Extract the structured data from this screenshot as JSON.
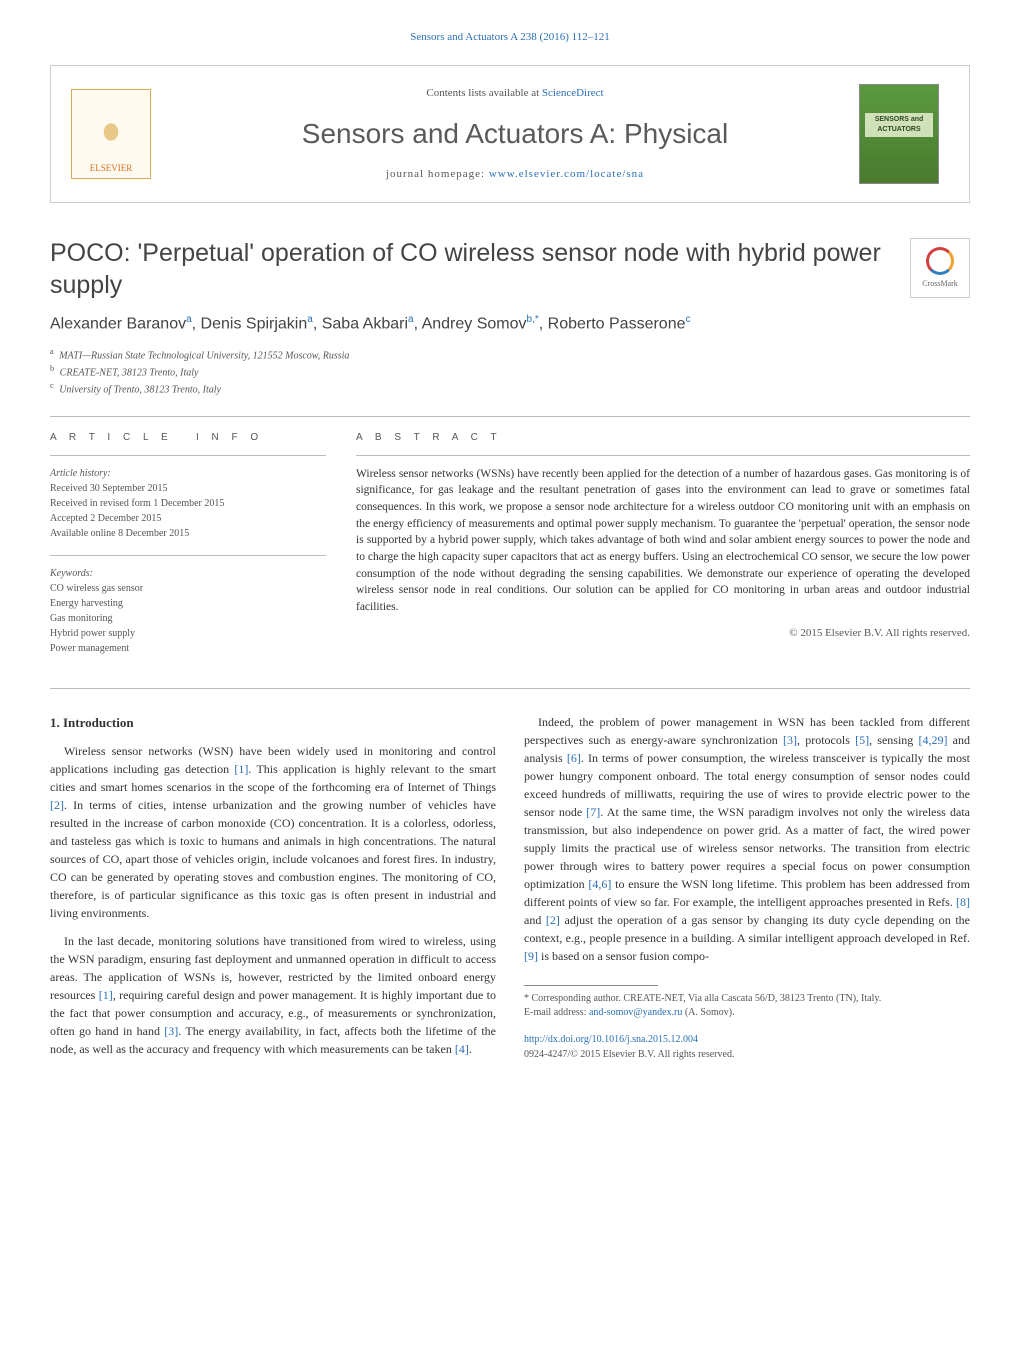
{
  "header_link": "Sensors and Actuators A 238 (2016) 112–121",
  "masthead": {
    "contents_prefix": "Contents lists available at ",
    "contents_link": "ScienceDirect",
    "journal_name": "Sensors and Actuators A: Physical",
    "homepage_prefix": "journal homepage: ",
    "homepage_link": "www.elsevier.com/locate/sna",
    "publisher": "ELSEVIER"
  },
  "crossmark_label": "CrossMark",
  "title": "POCO: 'Perpetual' operation of CO wireless sensor node with hybrid power supply",
  "authors_html": "Alexander Baranov<sup>a</sup>, Denis Spirjakin<sup>a</sup>, Saba Akbari<sup>a</sup>, Andrey Somov<sup>b,*</sup>, Roberto Passerone<sup>c</sup>",
  "affiliations": [
    {
      "sup": "a",
      "text": "MATI—Russian State Technological University, 121552 Moscow, Russia"
    },
    {
      "sup": "b",
      "text": "CREATE-NET, 38123 Trento, Italy"
    },
    {
      "sup": "c",
      "text": "University of Trento, 38123 Trento, Italy"
    }
  ],
  "article_info_heading": "a r t i c l e   i n f o",
  "abstract_heading": "a b s t r a c t",
  "history": {
    "label": "Article history:",
    "received": "Received 30 September 2015",
    "revised": "Received in revised form 1 December 2015",
    "accepted": "Accepted 2 December 2015",
    "online": "Available online 8 December 2015"
  },
  "keywords": {
    "label": "Keywords:",
    "items": [
      "CO wireless gas sensor",
      "Energy harvesting",
      "Gas monitoring",
      "Hybrid power supply",
      "Power management"
    ]
  },
  "abstract": "Wireless sensor networks (WSNs) have recently been applied for the detection of a number of hazardous gases. Gas monitoring is of significance, for gas leakage and the resultant penetration of gases into the environment can lead to grave or sometimes fatal consequences. In this work, we propose a sensor node architecture for a wireless outdoor CO monitoring unit with an emphasis on the energy efficiency of measurements and optimal power supply mechanism. To guarantee the 'perpetual' operation, the sensor node is supported by a hybrid power supply, which takes advantage of both wind and solar ambient energy sources to power the node and to charge the high capacity super capacitors that act as energy buffers. Using an electrochemical CO sensor, we secure the low power consumption of the node without degrading the sensing capabilities. We demonstrate our experience of operating the developed wireless sensor node in real conditions. Our solution can be applied for CO monitoring in urban areas and outdoor industrial facilities.",
  "copyright": "© 2015 Elsevier B.V. All rights reserved.",
  "body": {
    "section_number": "1.",
    "section_title": "Introduction",
    "paragraphs": [
      "Wireless sensor networks (WSN) have been widely used in monitoring and control applications including gas detection [1]. This application is highly relevant to the smart cities and smart homes scenarios in the scope of the forthcoming era of Internet of Things [2]. In terms of cities, intense urbanization and the growing number of vehicles have resulted in the increase of carbon monoxide (CO) concentration. It is a colorless, odorless, and tasteless gas which is toxic to humans and animals in high concentrations. The natural sources of CO, apart those of vehicles origin, include volcanoes and forest fires. In industry, CO can be generated by operating stoves and combustion engines. The monitoring of CO, therefore, is of particular significance as this toxic gas is often present in industrial and living environments.",
      "In the last decade, monitoring solutions have transitioned from wired to wireless, using the WSN paradigm, ensuring fast deployment and unmanned operation in difficult to access areas. The application of WSNs is, however, restricted by the limited onboard energy resources [1], requiring careful design and power management. It is highly important due to the fact that power consumption and accuracy, e.g., of measurements or synchronization, often go hand in hand [3]. The energy availability, in fact, affects both the lifetime of the node, as well as the accuracy and frequency with which measurements can be taken [4].",
      "Indeed, the problem of power management in WSN has been tackled from different perspectives such as energy-aware synchronization [3], protocols [5], sensing [4,29] and analysis [6]. In terms of power consumption, the wireless transceiver is typically the most power hungry component onboard. The total energy consumption of sensor nodes could exceed hundreds of milliwatts, requiring the use of wires to provide electric power to the sensor node [7]. At the same time, the WSN paradigm involves not only the wireless data transmission, but also independence on power grid. As a matter of fact, the wired power supply limits the practical use of wireless sensor networks. The transition from electric power through wires to battery power requires a special focus on power consumption optimization [4,6] to ensure the WSN long lifetime. This problem has been addressed from different points of view so far. For example, the intelligent approaches presented in Refs. [8] and [2] adjust the operation of a gas sensor by changing its duty cycle depending on the context, e.g., people presence in a building. A similar intelligent approach developed in Ref. [9] is based on a sensor fusion compo-"
    ]
  },
  "footnotes": {
    "corresponding": "* Corresponding author. CREATE-NET, Via alla Cascata 56/D, 38123 Trento (TN), Italy.",
    "email_label": "E-mail address: ",
    "email": "and-somov@yandex.ru",
    "email_attribution": " (A. Somov)."
  },
  "footer": {
    "doi": "http://dx.doi.org/10.1016/j.sna.2015.12.004",
    "issn_line": "0924-4247/© 2015 Elsevier B.V. All rights reserved."
  },
  "colors": {
    "link": "#2a6fb5",
    "text": "#333333",
    "muted": "#555555",
    "rule": "#bbbbbb"
  }
}
